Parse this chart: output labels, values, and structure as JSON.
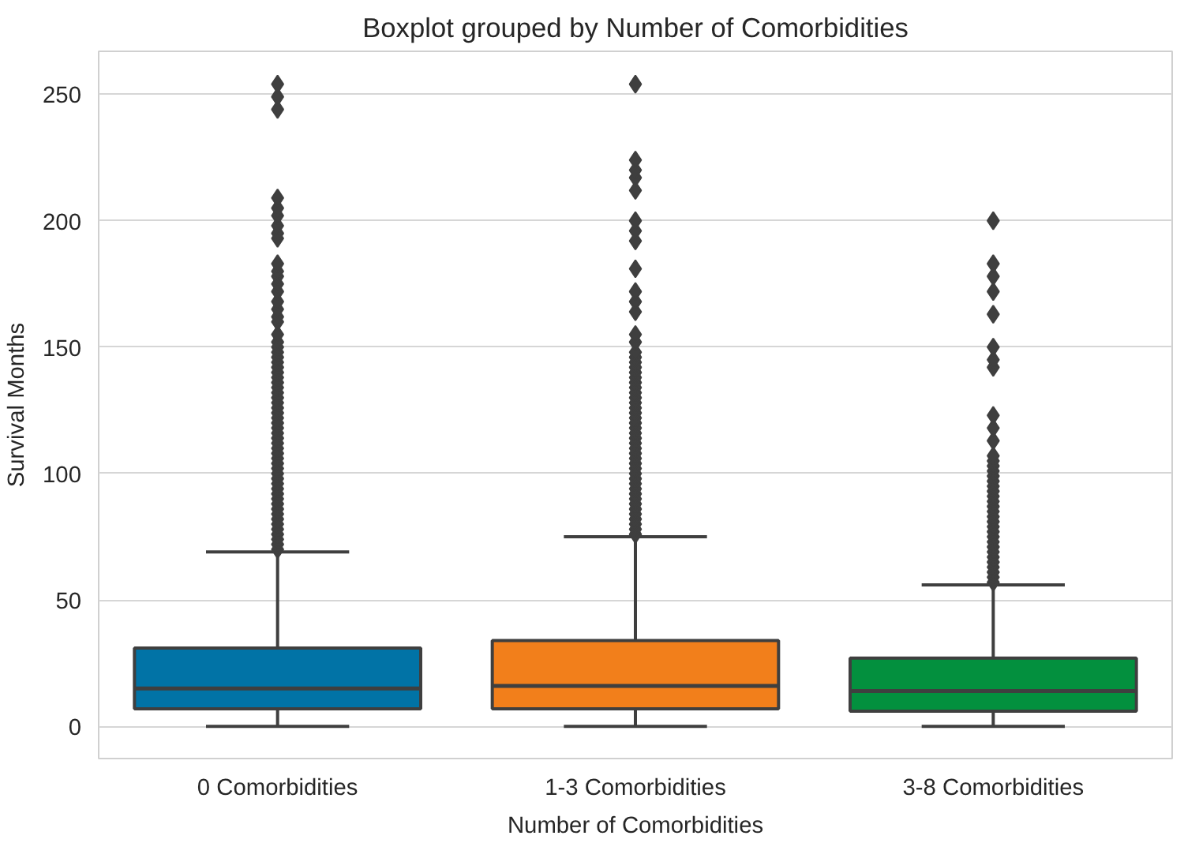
{
  "chart_data": {
    "type": "box",
    "title": "Boxplot grouped by Number of Comorbidities",
    "xlabel": "Number of Comorbidities",
    "ylabel": "Survival Months",
    "categories": [
      "0 Comorbidities",
      "1-3 Comorbidities",
      "3-8 Comorbidities"
    ],
    "colors": [
      "#0173a6",
      "#f27f1b",
      "#03903e"
    ],
    "boxes": [
      {
        "low": 0,
        "q1": 7,
        "median": 15,
        "q3": 31,
        "high": 69,
        "outliers": [
          70,
          72,
          74,
          76,
          78,
          80,
          82,
          84,
          86,
          88,
          90,
          92,
          94,
          96,
          98,
          100,
          102,
          104,
          106,
          108,
          110,
          112,
          114,
          116,
          118,
          120,
          122,
          124,
          126,
          128,
          130,
          132,
          134,
          136,
          138,
          140,
          142,
          144,
          146,
          148,
          150,
          152,
          155,
          160,
          162,
          165,
          168,
          172,
          175,
          178,
          180,
          183,
          193,
          195,
          198,
          202,
          205,
          209,
          244,
          249,
          254
        ]
      },
      {
        "low": 0,
        "q1": 7,
        "median": 16,
        "q3": 34,
        "high": 75,
        "outliers": [
          76,
          78,
          80,
          82,
          84,
          86,
          88,
          90,
          92,
          94,
          96,
          98,
          100,
          102,
          104,
          106,
          108,
          110,
          112,
          114,
          116,
          118,
          120,
          122,
          124,
          126,
          128,
          130,
          132,
          134,
          136,
          138,
          140,
          142,
          144,
          146,
          148,
          152,
          155,
          164,
          168,
          172,
          181,
          192,
          196,
          200,
          212,
          217,
          220,
          224,
          254
        ]
      },
      {
        "low": 0,
        "q1": 6,
        "median": 14,
        "q3": 27,
        "high": 56,
        "outliers": [
          57,
          59,
          61,
          63,
          65,
          67,
          69,
          71,
          73,
          75,
          77,
          79,
          81,
          83,
          85,
          87,
          89,
          91,
          93,
          95,
          97,
          99,
          101,
          103,
          105,
          107,
          113,
          118,
          123,
          142,
          145,
          150,
          163,
          172,
          178,
          183,
          200
        ]
      }
    ],
    "ylim": [
      -12.7,
      267
    ],
    "yticks": [
      0,
      50,
      100,
      150,
      200,
      250
    ],
    "grid": "y",
    "marker": "diamond"
  }
}
